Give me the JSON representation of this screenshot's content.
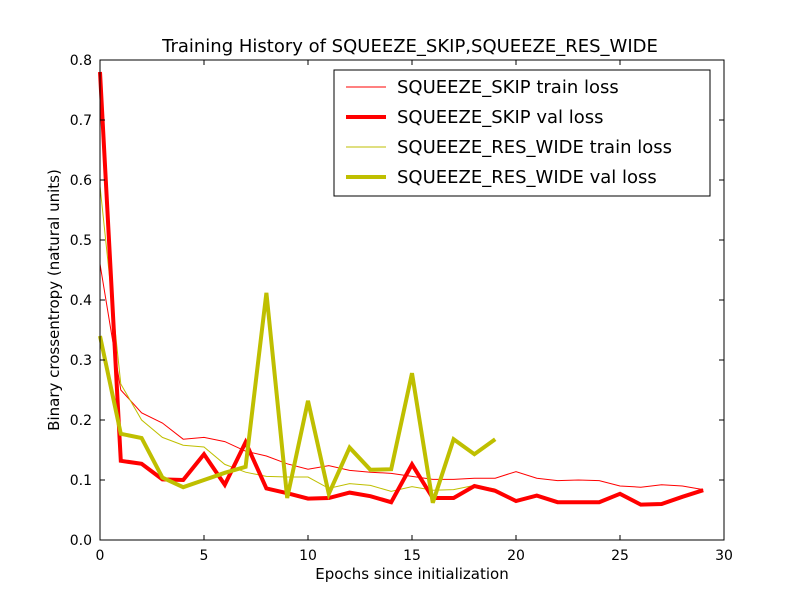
{
  "chart_data": {
    "type": "line",
    "title": "Training History of SQUEEZE_SKIP,SQUEEZE_RES_WIDE",
    "xlabel": "Epochs since initialization",
    "ylabel": "Binary crossentropy (natural units)",
    "xlim": [
      0,
      30
    ],
    "ylim": [
      0,
      0.8
    ],
    "xticks": [
      0,
      5,
      10,
      15,
      20,
      25,
      30
    ],
    "yticks": [
      0.0,
      0.1,
      0.2,
      0.3,
      0.4,
      0.5,
      0.6,
      0.7,
      0.8
    ],
    "xtick_labels": [
      "0",
      "5",
      "10",
      "15",
      "20",
      "25",
      "30"
    ],
    "ytick_labels": [
      "0.0",
      "0.1",
      "0.2",
      "0.3",
      "0.4",
      "0.5",
      "0.6",
      "0.7",
      "0.8"
    ],
    "grid": false,
    "legend_position": "top-right",
    "series": [
      {
        "name": "SQUEEZE_SKIP train loss",
        "color": "#ff0000",
        "style": "thin",
        "x": [
          0,
          1,
          2,
          3,
          4,
          5,
          6,
          7,
          8,
          9,
          10,
          11,
          12,
          13,
          14,
          15,
          16,
          17,
          18,
          19,
          20,
          21,
          22,
          23,
          24,
          25,
          26,
          27,
          28,
          29
        ],
        "values": [
          0.46,
          0.25,
          0.212,
          0.195,
          0.168,
          0.171,
          0.164,
          0.148,
          0.14,
          0.127,
          0.118,
          0.124,
          0.116,
          0.113,
          0.111,
          0.106,
          0.101,
          0.101,
          0.103,
          0.103,
          0.114,
          0.103,
          0.099,
          0.1,
          0.099,
          0.09,
          0.088,
          0.092,
          0.09,
          0.084
        ]
      },
      {
        "name": "SQUEEZE_SKIP val loss",
        "color": "#ff0000",
        "style": "thick",
        "x": [
          0,
          1,
          2,
          3,
          4,
          5,
          6,
          7,
          8,
          9,
          10,
          11,
          12,
          13,
          14,
          15,
          16,
          17,
          18,
          19,
          20,
          21,
          22,
          23,
          24,
          25,
          26,
          27,
          28,
          29
        ],
        "values": [
          0.78,
          0.132,
          0.127,
          0.101,
          0.1,
          0.143,
          0.092,
          0.163,
          0.086,
          0.078,
          0.069,
          0.07,
          0.079,
          0.073,
          0.063,
          0.126,
          0.07,
          0.07,
          0.09,
          0.082,
          0.065,
          0.074,
          0.063,
          0.063,
          0.063,
          0.077,
          0.059,
          0.06,
          0.072,
          0.083
        ]
      },
      {
        "name": "SQUEEZE_RES_WIDE train loss",
        "color": "#bfbf00",
        "style": "thin",
        "x": [
          0,
          1,
          2,
          3,
          4,
          5,
          6,
          7,
          8,
          9,
          10,
          11,
          12,
          13,
          14,
          15,
          16,
          17,
          18,
          19
        ],
        "values": [
          0.59,
          0.26,
          0.2,
          0.171,
          0.158,
          0.155,
          0.126,
          0.113,
          0.106,
          0.105,
          0.105,
          0.086,
          0.094,
          0.091,
          0.081,
          0.089,
          0.083,
          0.084,
          0.091,
          0.085
        ]
      },
      {
        "name": "SQUEEZE_RES_WIDE val loss",
        "color": "#bfbf00",
        "style": "thick",
        "x": [
          0,
          1,
          2,
          3,
          4,
          5,
          6,
          7,
          8,
          9,
          10,
          11,
          12,
          13,
          14,
          15,
          16,
          17,
          18,
          19
        ],
        "values": [
          0.34,
          0.177,
          0.17,
          0.104,
          0.088,
          0.1,
          0.112,
          0.122,
          0.412,
          0.07,
          0.232,
          0.077,
          0.154,
          0.117,
          0.118,
          0.278,
          0.062,
          0.168,
          0.143,
          0.168
        ]
      }
    ]
  }
}
